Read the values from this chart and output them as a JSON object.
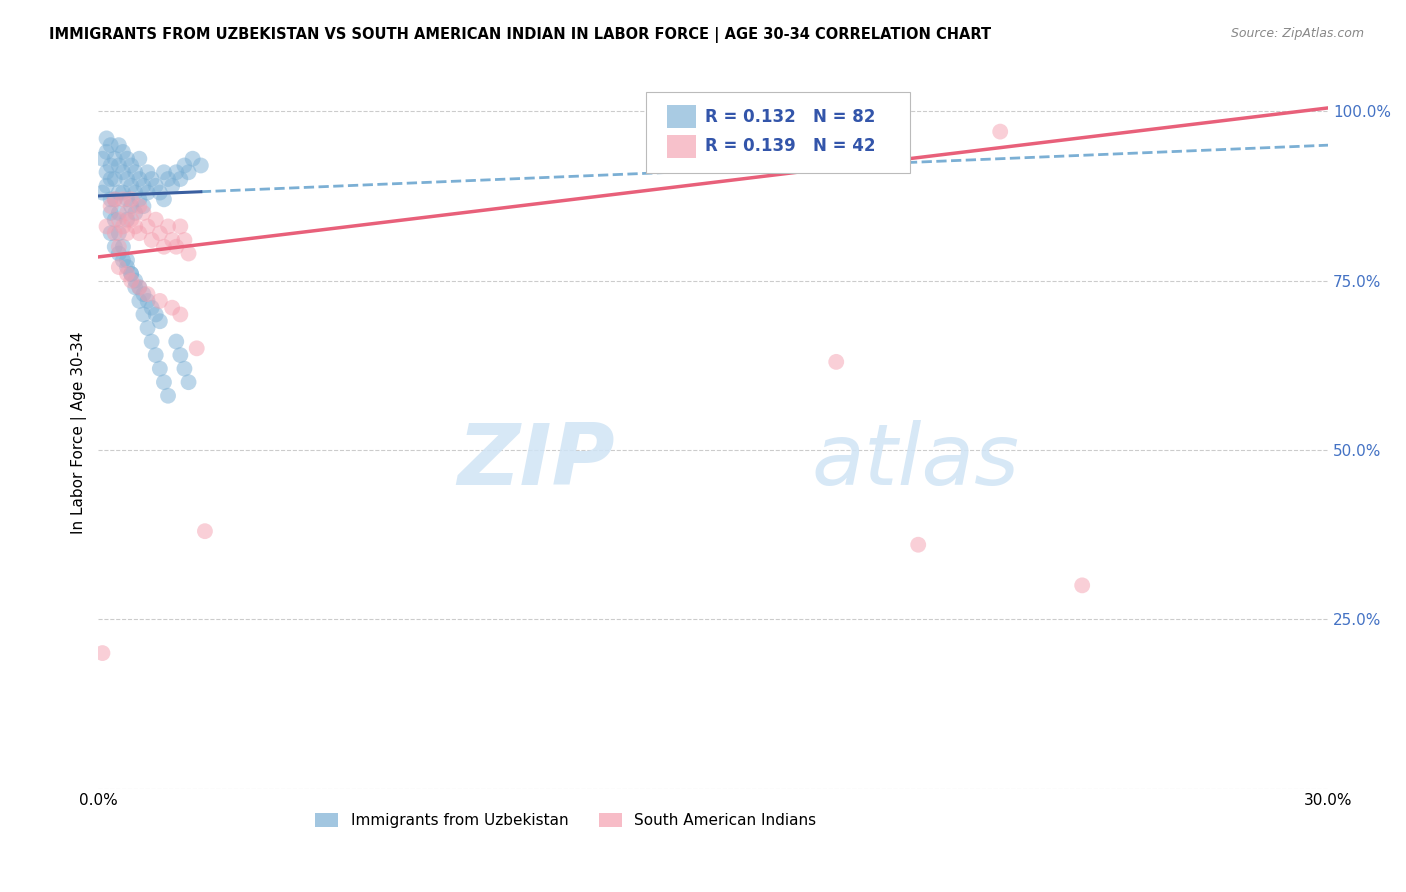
{
  "title": "IMMIGRANTS FROM UZBEKISTAN VS SOUTH AMERICAN INDIAN IN LABOR FORCE | AGE 30-34 CORRELATION CHART",
  "source": "Source: ZipAtlas.com",
  "ylabel": "In Labor Force | Age 30-34",
  "xlim": [
    0.0,
    0.3
  ],
  "ylim": [
    0.0,
    1.05
  ],
  "x_ticks": [
    0.0,
    0.05,
    0.1,
    0.15,
    0.2,
    0.25,
    0.3
  ],
  "x_tick_labels": [
    "0.0%",
    "",
    "",
    "",
    "",
    "",
    "30.0%"
  ],
  "y_ticks": [
    0.0,
    0.25,
    0.5,
    0.75,
    1.0
  ],
  "y_tick_labels": [
    "",
    "25.0%",
    "50.0%",
    "75.0%",
    "100.0%"
  ],
  "y_tick_color": "#4472c4",
  "legend_R1": "0.132",
  "legend_N1": "82",
  "legend_R2": "0.139",
  "legend_N2": "42",
  "blue_color": "#7bafd4",
  "pink_color": "#f4a0b0",
  "trendline_blue_solid_color": "#3a5fa0",
  "trendline_blue_dash_color": "#7bafd4",
  "trendline_pink_color": "#e8607a",
  "watermark_color": "#d0e4f5",
  "scatter_blue_x": [
    0.001,
    0.001,
    0.002,
    0.002,
    0.002,
    0.002,
    0.003,
    0.003,
    0.003,
    0.003,
    0.003,
    0.004,
    0.004,
    0.004,
    0.004,
    0.005,
    0.005,
    0.005,
    0.005,
    0.005,
    0.006,
    0.006,
    0.006,
    0.007,
    0.007,
    0.007,
    0.007,
    0.008,
    0.008,
    0.008,
    0.009,
    0.009,
    0.009,
    0.01,
    0.01,
    0.01,
    0.011,
    0.011,
    0.012,
    0.012,
    0.013,
    0.014,
    0.015,
    0.016,
    0.016,
    0.017,
    0.018,
    0.019,
    0.02,
    0.021,
    0.022,
    0.023,
    0.025,
    0.003,
    0.004,
    0.005,
    0.006,
    0.007,
    0.008,
    0.009,
    0.01,
    0.011,
    0.012,
    0.013,
    0.014,
    0.015,
    0.006,
    0.007,
    0.008,
    0.009,
    0.01,
    0.011,
    0.012,
    0.013,
    0.014,
    0.015,
    0.016,
    0.017,
    0.019,
    0.02,
    0.021,
    0.022
  ],
  "scatter_blue_y": [
    0.88,
    0.93,
    0.91,
    0.94,
    0.96,
    0.89,
    0.92,
    0.95,
    0.9,
    0.87,
    0.85,
    0.93,
    0.9,
    0.87,
    0.84,
    0.92,
    0.95,
    0.88,
    0.85,
    0.82,
    0.91,
    0.94,
    0.88,
    0.93,
    0.9,
    0.87,
    0.84,
    0.92,
    0.89,
    0.86,
    0.91,
    0.88,
    0.85,
    0.93,
    0.9,
    0.87,
    0.89,
    0.86,
    0.91,
    0.88,
    0.9,
    0.89,
    0.88,
    0.91,
    0.87,
    0.9,
    0.89,
    0.91,
    0.9,
    0.92,
    0.91,
    0.93,
    0.92,
    0.82,
    0.8,
    0.79,
    0.78,
    0.77,
    0.76,
    0.75,
    0.74,
    0.73,
    0.72,
    0.71,
    0.7,
    0.69,
    0.8,
    0.78,
    0.76,
    0.74,
    0.72,
    0.7,
    0.68,
    0.66,
    0.64,
    0.62,
    0.6,
    0.58,
    0.66,
    0.64,
    0.62,
    0.6
  ],
  "scatter_pink_x": [
    0.001,
    0.002,
    0.003,
    0.004,
    0.004,
    0.005,
    0.005,
    0.006,
    0.006,
    0.007,
    0.007,
    0.008,
    0.008,
    0.009,
    0.01,
    0.01,
    0.011,
    0.012,
    0.013,
    0.014,
    0.015,
    0.016,
    0.017,
    0.018,
    0.019,
    0.02,
    0.021,
    0.022,
    0.005,
    0.007,
    0.008,
    0.01,
    0.012,
    0.015,
    0.018,
    0.02,
    0.024,
    0.026,
    0.22,
    0.18,
    0.2,
    0.24
  ],
  "scatter_pink_y": [
    0.2,
    0.83,
    0.86,
    0.82,
    0.87,
    0.84,
    0.8,
    0.83,
    0.87,
    0.85,
    0.82,
    0.84,
    0.87,
    0.83,
    0.86,
    0.82,
    0.85,
    0.83,
    0.81,
    0.84,
    0.82,
    0.8,
    0.83,
    0.81,
    0.8,
    0.83,
    0.81,
    0.79,
    0.77,
    0.76,
    0.75,
    0.74,
    0.73,
    0.72,
    0.71,
    0.7,
    0.65,
    0.38,
    0.97,
    0.63,
    0.36,
    0.3
  ],
  "trendline_blue_x0": 0.0,
  "trendline_blue_x1": 0.3,
  "trendline_blue_y0": 0.875,
  "trendline_blue_y1": 0.95,
  "trendline_blue_solid_x1": 0.025,
  "trendline_pink_x0": 0.0,
  "trendline_pink_x1": 0.3,
  "trendline_pink_y0": 0.785,
  "trendline_pink_y1": 1.005
}
